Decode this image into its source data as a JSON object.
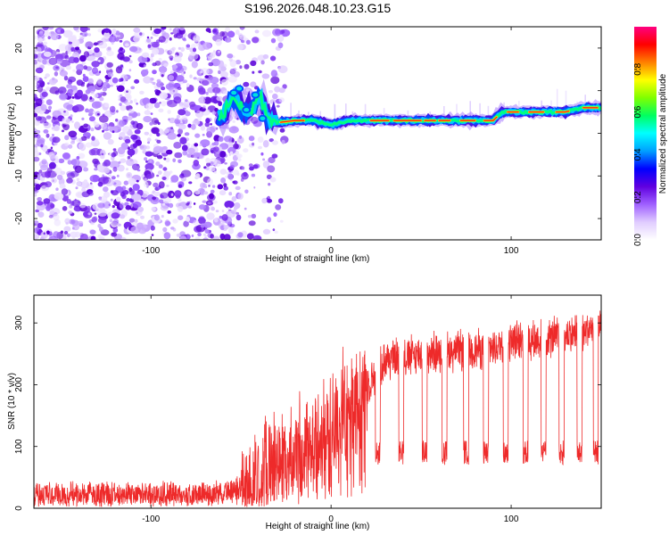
{
  "title": "S196.2026.048.10.23.G15",
  "chart_data": [
    {
      "type": "heatmap",
      "name": "spectrogram",
      "title": "S196.2026.048.10.23.G15",
      "xlabel": "Height of straight line (km)",
      "ylabel": "Frequency (Hz)",
      "xlim": [
        -165,
        150
      ],
      "ylim": [
        -25,
        25
      ],
      "xticks": [
        -100,
        0,
        100
      ],
      "yticks": [
        -20,
        -10,
        0,
        10,
        20
      ],
      "ridge": {
        "description_points_x": [
          -60,
          -55,
          -50,
          -45,
          -40,
          -35,
          -30,
          -20,
          -10,
          0,
          10,
          20,
          40,
          60,
          80,
          90,
          95,
          110,
          120,
          130,
          140,
          148
        ],
        "description_points_y": [
          4,
          9,
          6,
          5,
          9,
          4,
          2.5,
          3,
          3,
          2,
          3,
          3,
          3,
          3,
          3,
          3,
          5,
          5,
          5,
          5,
          6,
          6
        ]
      },
      "noise_region_x": [
        -165,
        -50
      ],
      "colorbar": {
        "label": "Normalized spectral amplitude",
        "ticks": [
          0.0,
          0.2,
          0.4,
          0.6,
          0.8
        ],
        "tick_labels": [
          "0.0",
          "0.2",
          "0.4",
          "0.6",
          "0.8"
        ],
        "range": [
          0,
          1
        ],
        "colors": [
          "#ffffff",
          "#e0ccff",
          "#9f5fff",
          "#6000e0",
          "#0000ff",
          "#00a0ff",
          "#00ffff",
          "#00ff60",
          "#80ff00",
          "#ffff00",
          "#ff8000",
          "#ff0000",
          "#ff0080"
        ]
      }
    },
    {
      "type": "line",
      "name": "snr",
      "xlabel": "Height of straight line (km)",
      "ylabel": "SNR (10 * v/v)",
      "xlim": [
        -165,
        150
      ],
      "ylim": [
        0,
        345
      ],
      "xticks": [
        -100,
        0,
        100
      ],
      "yticks": [
        0,
        100,
        200,
        300
      ],
      "color": "#ee2a2a",
      "series_profile": {
        "x": [
          -165,
          -120,
          -80,
          -60,
          -50,
          -40,
          -30,
          -20,
          -10,
          0,
          5,
          10,
          15,
          20,
          30,
          50,
          70,
          90,
          100,
          120,
          140,
          150
        ],
        "y": [
          25,
          25,
          25,
          28,
          35,
          60,
          80,
          90,
          110,
          130,
          160,
          170,
          170,
          200,
          240,
          250,
          255,
          260,
          270,
          275,
          285,
          300
        ]
      },
      "dropout_centers_x": [
        26,
        39,
        52,
        63,
        75,
        86,
        97,
        108,
        118,
        128,
        138,
        147
      ],
      "dropout_level": 90
    }
  ]
}
